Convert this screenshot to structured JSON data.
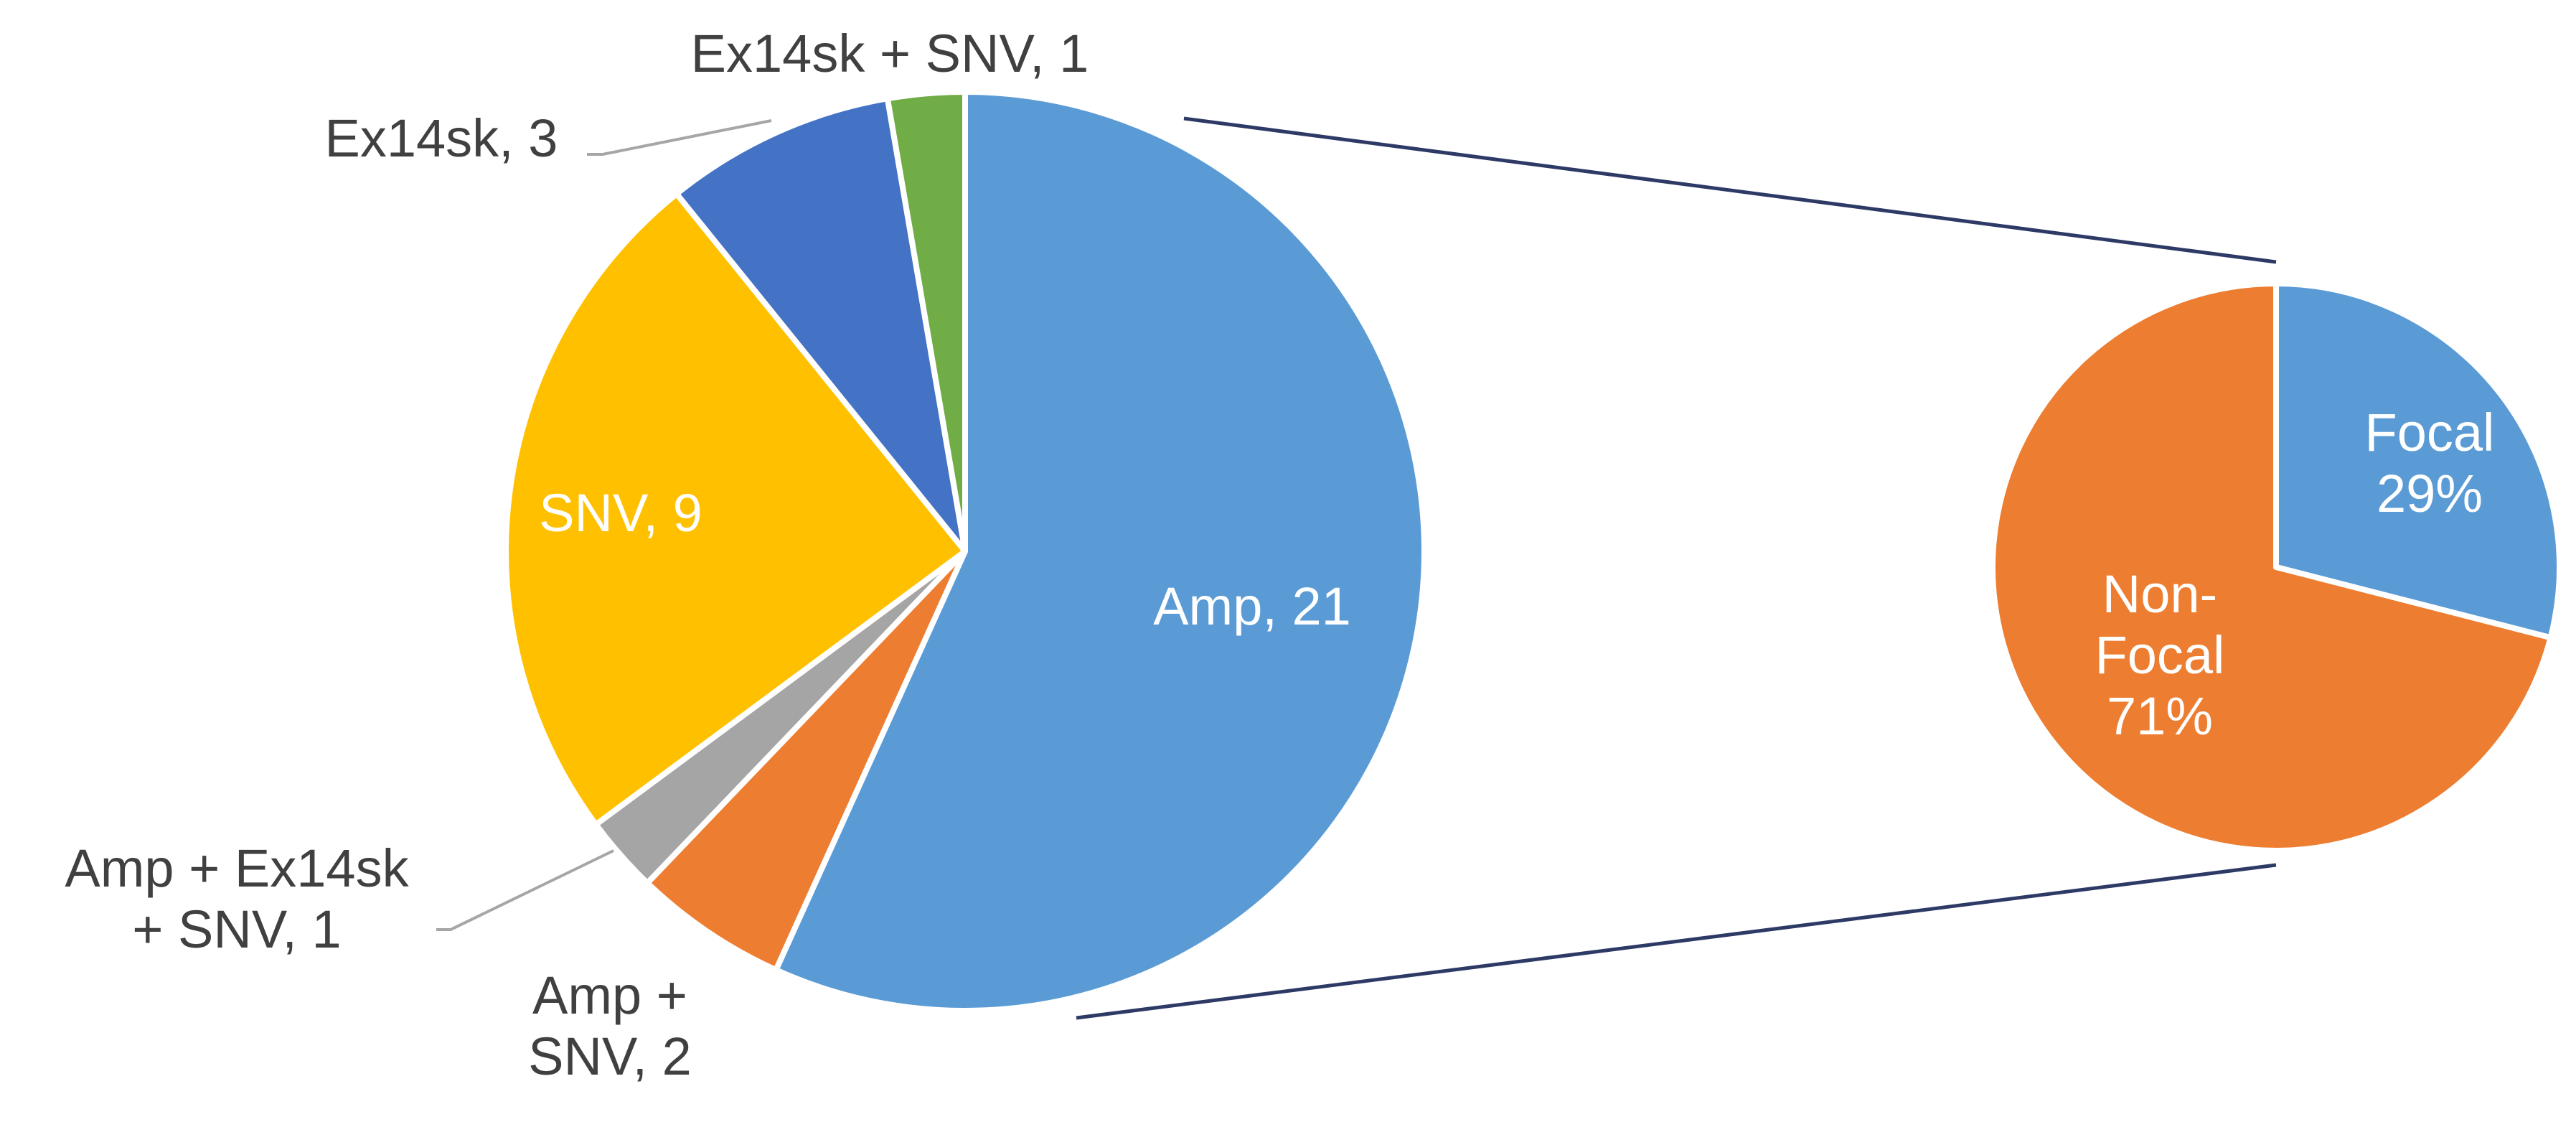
{
  "chart_data": [
    {
      "type": "pie",
      "slices": [
        {
          "label": "Amp, 21",
          "name": "Amp",
          "value": 21,
          "color": "#5b9bd5",
          "label_color": "#ffffff",
          "label_inside": true
        },
        {
          "label": "Amp + SNV, 2",
          "name": "Amp + SNV",
          "value": 2,
          "color": "#ed7d31",
          "label_color": "#404040",
          "label_inside": false
        },
        {
          "label": "Amp + Ex14sk + SNV, 1",
          "name": "Amp + Ex14sk + SNV",
          "value": 1,
          "color": "#a5a5a5",
          "label_color": "#404040",
          "label_inside": false
        },
        {
          "label": "SNV, 9",
          "name": "SNV",
          "value": 9,
          "color": "#ffc000",
          "label_color": "#ffffff",
          "label_inside": true
        },
        {
          "label": "Ex14sk, 3",
          "name": "Ex14sk",
          "value": 3,
          "color": "#4472c4",
          "label_color": "#404040",
          "label_inside": false
        },
        {
          "label": "Ex14sk + SNV, 1",
          "name": "Ex14sk + SNV",
          "value": 1,
          "color": "#70ad47",
          "label_color": "#404040",
          "label_inside": false
        }
      ]
    },
    {
      "type": "pie",
      "detail_of": "Amp",
      "slices": [
        {
          "label": "Focal 29%",
          "name": "Focal",
          "value": 29,
          "color": "#5b9bd5",
          "label_color": "#ffffff"
        },
        {
          "label": "Non-Focal 71%",
          "name": "Non-Focal",
          "value": 71,
          "color": "#ed7d31",
          "label_color": "#ffffff"
        }
      ]
    }
  ]
}
